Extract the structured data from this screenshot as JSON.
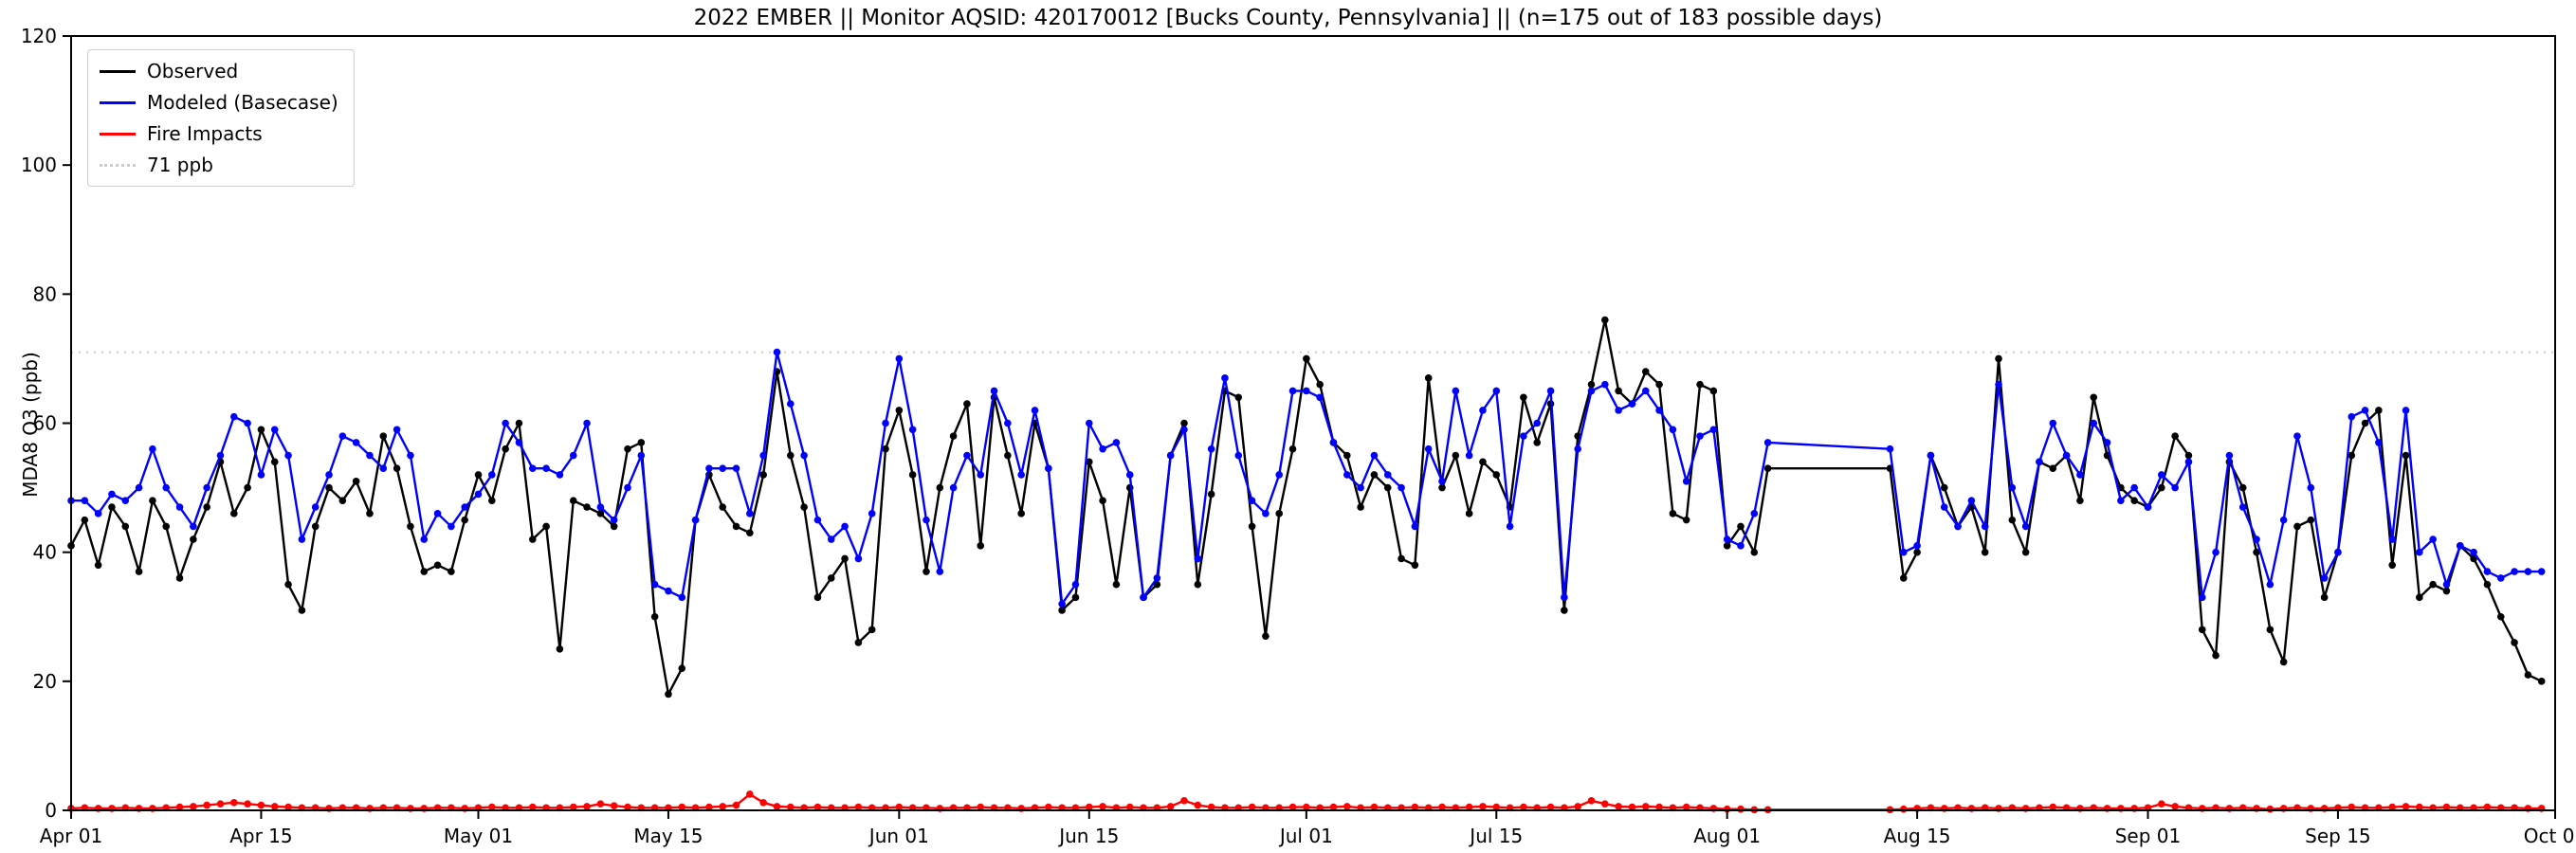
{
  "title": "2022 EMBER || Monitor AQSID: 420170012 [Bucks County, Pennsylvania] || (n=175 out of 183 possible days)",
  "ylabel": "MDA8 O3 (ppb)",
  "legend": {
    "observed": "Observed",
    "modeled": "Modeled (Basecase)",
    "fire": "Fire Impacts",
    "threshold": "71 ppb"
  },
  "colors": {
    "observed": "#000000",
    "modeled": "#0000ff",
    "fire": "#ff0000",
    "threshold": "#cccccc"
  },
  "chart_data": {
    "type": "line",
    "title": "2022 EMBER || Monitor AQSID: 420170012 [Bucks County, Pennsylvania] || (n=175 out of 183 possible days)",
    "xlabel": "",
    "ylabel": "MDA8 O3 (ppb)",
    "ylim": [
      0,
      120
    ],
    "yticks": [
      0,
      20,
      40,
      60,
      80,
      100,
      120
    ],
    "x_domain_days": [
      0,
      183
    ],
    "xticks": {
      "labels": [
        "Apr 01",
        "Apr 15",
        "May 01",
        "May 15",
        "Jun 01",
        "Jun 15",
        "Jul 01",
        "Jul 15",
        "Aug 01",
        "Aug 15",
        "Sep 01",
        "Sep 15",
        "Oct 01"
      ],
      "day_index": [
        0,
        14,
        30,
        44,
        61,
        75,
        91,
        105,
        122,
        136,
        153,
        167,
        183
      ]
    },
    "threshold_ppb": 71,
    "legend_position": "upper left",
    "grid": false,
    "series": [
      {
        "name": "Observed",
        "color": "#000000",
        "values": [
          41,
          45,
          38,
          47,
          44,
          37,
          48,
          44,
          36,
          42,
          47,
          54,
          46,
          50,
          59,
          54,
          35,
          31,
          44,
          50,
          48,
          51,
          46,
          58,
          53,
          44,
          37,
          38,
          37,
          45,
          52,
          48,
          56,
          60,
          42,
          44,
          25,
          48,
          47,
          46,
          44,
          56,
          57,
          30,
          18,
          22,
          45,
          52,
          47,
          44,
          43,
          52,
          68,
          55,
          47,
          33,
          36,
          39,
          26,
          28,
          56,
          62,
          52,
          37,
          50,
          58,
          63,
          41,
          64,
          55,
          46,
          60,
          53,
          31,
          33,
          54,
          48,
          35,
          50,
          33,
          35,
          55,
          60,
          35,
          49,
          65,
          64,
          44,
          27,
          46,
          56,
          70,
          66,
          57,
          55,
          47,
          52,
          50,
          39,
          38,
          67,
          50,
          55,
          46,
          54,
          52,
          47,
          64,
          57,
          63,
          31,
          58,
          66,
          76,
          65,
          63,
          68,
          66,
          46,
          45,
          66,
          65,
          41,
          44,
          40,
          53,
          null,
          null,
          null,
          null,
          null,
          null,
          null,
          null,
          53,
          36,
          40,
          55,
          50,
          44,
          47,
          40,
          70,
          45,
          40,
          54,
          53,
          55,
          48,
          64,
          55,
          50,
          48,
          47,
          50,
          58,
          55,
          28,
          24,
          54,
          50,
          40,
          28,
          23,
          44,
          45,
          33,
          40,
          55,
          60,
          62,
          38,
          55,
          33,
          35,
          34,
          41,
          39,
          35,
          30,
          26,
          21,
          20
        ]
      },
      {
        "name": "Modeled (Basecase)",
        "color": "#0000ff",
        "values": [
          48,
          48,
          46,
          49,
          48,
          50,
          56,
          50,
          47,
          44,
          50,
          55,
          61,
          60,
          52,
          59,
          55,
          42,
          47,
          52,
          58,
          57,
          55,
          53,
          59,
          55,
          42,
          46,
          44,
          47,
          49,
          52,
          60,
          57,
          53,
          53,
          52,
          55,
          60,
          47,
          45,
          50,
          55,
          35,
          34,
          33,
          45,
          53,
          53,
          53,
          46,
          55,
          71,
          63,
          55,
          45,
          42,
          44,
          39,
          46,
          60,
          70,
          59,
          45,
          37,
          50,
          55,
          52,
          65,
          60,
          52,
          62,
          53,
          32,
          35,
          60,
          56,
          57,
          52,
          33,
          36,
          55,
          59,
          39,
          56,
          67,
          55,
          48,
          46,
          52,
          65,
          65,
          64,
          57,
          52,
          50,
          55,
          52,
          50,
          44,
          56,
          51,
          65,
          55,
          62,
          65,
          44,
          58,
          60,
          65,
          33,
          56,
          65,
          66,
          62,
          63,
          65,
          62,
          59,
          51,
          58,
          59,
          42,
          41,
          46,
          57,
          null,
          null,
          null,
          null,
          null,
          null,
          null,
          null,
          56,
          40,
          41,
          55,
          47,
          44,
          48,
          44,
          66,
          50,
          44,
          54,
          60,
          55,
          52,
          60,
          57,
          48,
          50,
          47,
          52,
          50,
          54,
          33,
          40,
          55,
          47,
          42,
          35,
          45,
          58,
          50,
          36,
          40,
          61,
          62,
          57,
          42,
          62,
          40,
          42,
          35,
          41,
          40,
          37,
          36,
          37,
          37,
          37
        ]
      },
      {
        "name": "Fire Impacts",
        "color": "#ff0000",
        "values": [
          0.3,
          0.4,
          0.3,
          0.3,
          0.4,
          0.3,
          0.3,
          0.4,
          0.5,
          0.6,
          0.8,
          1.0,
          1.2,
          1.0,
          0.8,
          0.6,
          0.5,
          0.4,
          0.4,
          0.3,
          0.4,
          0.4,
          0.3,
          0.4,
          0.4,
          0.3,
          0.3,
          0.4,
          0.4,
          0.3,
          0.4,
          0.5,
          0.4,
          0.4,
          0.5,
          0.4,
          0.4,
          0.5,
          0.6,
          1.0,
          0.7,
          0.5,
          0.4,
          0.4,
          0.4,
          0.5,
          0.4,
          0.5,
          0.6,
          0.8,
          2.5,
          1.2,
          0.6,
          0.5,
          0.4,
          0.5,
          0.4,
          0.4,
          0.5,
          0.4,
          0.4,
          0.5,
          0.4,
          0.4,
          0.3,
          0.4,
          0.4,
          0.5,
          0.4,
          0.4,
          0.3,
          0.4,
          0.5,
          0.4,
          0.4,
          0.5,
          0.6,
          0.4,
          0.5,
          0.4,
          0.4,
          0.6,
          1.5,
          0.8,
          0.5,
          0.4,
          0.4,
          0.5,
          0.4,
          0.4,
          0.5,
          0.5,
          0.4,
          0.5,
          0.6,
          0.4,
          0.5,
          0.4,
          0.4,
          0.5,
          0.4,
          0.5,
          0.4,
          0.5,
          0.6,
          0.5,
          0.4,
          0.5,
          0.4,
          0.5,
          0.4,
          0.6,
          1.5,
          1.0,
          0.6,
          0.5,
          0.6,
          0.5,
          0.4,
          0.5,
          0.4,
          0.3,
          0.2,
          0.2,
          0.1,
          0.1,
          null,
          null,
          null,
          null,
          null,
          null,
          null,
          null,
          0.1,
          0.2,
          0.3,
          0.4,
          0.3,
          0.4,
          0.3,
          0.4,
          0.3,
          0.4,
          0.3,
          0.4,
          0.5,
          0.4,
          0.3,
          0.4,
          0.3,
          0.3,
          0.3,
          0.4,
          1.0,
          0.6,
          0.4,
          0.3,
          0.4,
          0.3,
          0.4,
          0.3,
          0.2,
          0.3,
          0.4,
          0.3,
          0.3,
          0.4,
          0.5,
          0.4,
          0.4,
          0.5,
          0.6,
          0.5,
          0.4,
          0.5,
          0.4,
          0.4,
          0.5,
          0.4,
          0.4,
          0.3,
          0.3
        ]
      }
    ]
  }
}
